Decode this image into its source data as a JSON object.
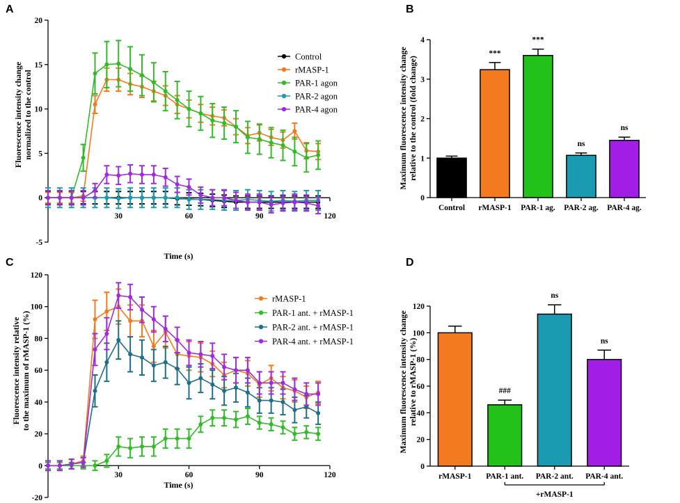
{
  "chart_data": [
    {
      "panel": "A",
      "type": "line",
      "xlabel": "Time (s)",
      "ylabel_lines": [
        "Fluorescence intensity change",
        "normalized to the control"
      ],
      "xlim": [
        0,
        120
      ],
      "ylim": [
        -5,
        20
      ],
      "xticks": [
        30,
        60,
        90,
        120
      ],
      "yticks": [
        -5,
        0,
        5,
        10,
        15,
        20
      ],
      "legend_position": "top-right",
      "x": [
        0,
        5,
        10,
        15,
        20,
        25,
        30,
        35,
        40,
        45,
        50,
        55,
        60,
        65,
        70,
        75,
        80,
        85,
        90,
        95,
        100,
        105,
        110,
        115
      ],
      "series": [
        {
          "name": "Control",
          "color": "#000000",
          "values": [
            0,
            0,
            0,
            0,
            0,
            0,
            0,
            0,
            0,
            0,
            0,
            -0.1,
            -0.15,
            -0.2,
            -0.3,
            -0.4,
            -0.5,
            -0.5,
            -0.5,
            -0.5,
            -0.5,
            -0.5,
            -0.5,
            -0.5
          ],
          "errors": [
            0.7,
            0.7,
            0.7,
            0.7,
            0.7,
            0.7,
            0.7,
            0.7,
            0.7,
            0.7,
            0.7,
            0.7,
            0.7,
            0.7,
            0.7,
            0.7,
            0.7,
            0.7,
            0.7,
            0.7,
            0.7,
            0.7,
            0.7,
            0.7
          ]
        },
        {
          "name": "rMASP-1",
          "color": "#f47a20",
          "values": [
            0,
            0,
            0,
            0.2,
            10.5,
            13.3,
            13.3,
            12.8,
            12.5,
            12.0,
            11.5,
            10.5,
            10.0,
            9.5,
            9.2,
            9.0,
            8.0,
            7.0,
            7.3,
            6.8,
            6.5,
            7.5,
            5.3,
            5.2
          ],
          "errors": [
            0.6,
            0.6,
            0.6,
            0.6,
            1.0,
            1.3,
            1.3,
            1.2,
            1.2,
            1.1,
            1.1,
            1.0,
            1.0,
            1.0,
            1.0,
            0.9,
            0.9,
            0.9,
            0.9,
            0.9,
            0.9,
            0.9,
            0.9,
            0.9
          ]
        },
        {
          "name": "PAR-1 agon",
          "color": "#33b92b",
          "values": [
            0,
            0,
            0,
            4.5,
            14.0,
            15.0,
            15.1,
            14.5,
            13.8,
            13.0,
            12.0,
            11.0,
            10.0,
            9.5,
            8.7,
            8.4,
            8.0,
            6.8,
            6.6,
            6.2,
            5.9,
            5.2,
            4.5,
            4.8
          ],
          "errors": [
            0.8,
            0.8,
            0.8,
            1.5,
            2.3,
            2.6,
            2.6,
            2.5,
            2.3,
            2.2,
            2.2,
            2.1,
            2.0,
            1.9,
            1.9,
            1.8,
            1.8,
            1.8,
            1.7,
            1.7,
            1.7,
            1.6,
            1.6,
            1.6
          ]
        },
        {
          "name": "PAR-2 agon",
          "color": "#1f9aac",
          "values": [
            0,
            0,
            0,
            0,
            0,
            0,
            -0.1,
            0,
            0,
            0,
            0,
            0,
            -0.2,
            -0.2,
            -0.2,
            -0.3,
            -0.3,
            -0.2,
            -0.3,
            -0.4,
            -0.3,
            -0.4,
            -0.3,
            -0.3
          ],
          "errors": [
            1.1,
            1.1,
            1.1,
            1.1,
            1.1,
            1.1,
            1.1,
            1.1,
            1.1,
            1.1,
            1.1,
            1.1,
            1.1,
            1.1,
            1.1,
            1.1,
            1.1,
            1.1,
            1.1,
            1.1,
            1.1,
            1.1,
            1.1,
            1.1
          ]
        },
        {
          "name": "PAR-4 agon",
          "color": "#9b2ddb",
          "values": [
            0,
            0,
            0,
            0,
            0.8,
            2.6,
            2.5,
            2.7,
            2.6,
            2.6,
            2.3,
            1.5,
            1.2,
            0.3,
            0,
            0,
            -0.3,
            -0.5,
            -0.5,
            -0.8,
            -0.6,
            -0.5,
            -0.6,
            -0.9
          ],
          "errors": [
            0.8,
            0.8,
            0.8,
            0.8,
            0.8,
            1.0,
            1.0,
            1.0,
            1.0,
            1.0,
            1.0,
            0.9,
            0.9,
            0.9,
            0.9,
            0.9,
            0.9,
            0.9,
            0.9,
            0.9,
            0.9,
            0.9,
            0.9,
            0.9
          ]
        }
      ]
    },
    {
      "panel": "B",
      "type": "bar",
      "ylabel_lines": [
        "Maximum fluorescence intensity change",
        "relative to the control (fold change)"
      ],
      "ylim": [
        0,
        4
      ],
      "yticks": [
        0,
        1,
        2,
        3,
        4
      ],
      "categories": [
        "Control",
        "rMASP-1",
        "PAR-1 ag.",
        "PAR-2 ag.",
        "PAR-4 ag."
      ],
      "values": [
        1.0,
        3.24,
        3.6,
        1.07,
        1.45
      ],
      "errors": [
        0.05,
        0.18,
        0.16,
        0.06,
        0.08
      ],
      "colors": [
        "#000000",
        "#f47a20",
        "#22c21a",
        "#1a9bb1",
        "#a01ee6"
      ],
      "annotations": [
        "",
        "***",
        "***",
        "ns",
        "ns"
      ]
    },
    {
      "panel": "C",
      "type": "line",
      "xlabel": "Time (s)",
      "ylabel_lines": [
        "Fluorescence intensity relative",
        "to the maximum of rMASP-1 (%)"
      ],
      "xlim": [
        0,
        120
      ],
      "ylim": [
        -20,
        120
      ],
      "xticks": [
        30,
        60,
        90,
        120
      ],
      "yticks": [
        -20,
        0,
        20,
        40,
        60,
        80,
        100,
        120
      ],
      "legend_position": "top-right",
      "x": [
        0,
        5,
        10,
        15,
        20,
        25,
        30,
        35,
        40,
        45,
        50,
        55,
        60,
        65,
        70,
        75,
        80,
        85,
        90,
        95,
        100,
        105,
        110,
        115
      ],
      "series": [
        {
          "name": "rMASP-1",
          "color": "#f47a20",
          "values": [
            0,
            0,
            1,
            3,
            92,
            97,
            100,
            91,
            91,
            75,
            84,
            70,
            69,
            68,
            64,
            57,
            60,
            58,
            51,
            55,
            49,
            47,
            43,
            46
          ],
          "errors": [
            3,
            3,
            3,
            3,
            12,
            12,
            11,
            10,
            10,
            10,
            10,
            9,
            9,
            9,
            8,
            8,
            8,
            8,
            8,
            8,
            7,
            7,
            7,
            7
          ]
        },
        {
          "name": "PAR-1 ant. + rMASP-1",
          "color": "#33b92b",
          "values": [
            0,
            0,
            0,
            0,
            0,
            3,
            12,
            11,
            12,
            12,
            17,
            17,
            17,
            26,
            30,
            30,
            29,
            31,
            27,
            26,
            24,
            20,
            21,
            20
          ],
          "errors": [
            2,
            2,
            2,
            2,
            3,
            4,
            6,
            6,
            6,
            6,
            6,
            6,
            6,
            5,
            5,
            5,
            5,
            5,
            4,
            4,
            4,
            4,
            4,
            4
          ]
        },
        {
          "name": "PAR-2 ant. + rMASP-1",
          "color": "#1f6e85",
          "values": [
            0,
            0,
            1,
            2,
            47,
            65,
            79,
            70,
            68,
            63,
            65,
            61,
            52,
            55,
            51,
            47,
            49,
            46,
            41,
            41,
            40,
            35,
            37,
            33
          ],
          "errors": [
            3,
            3,
            3,
            3,
            10,
            12,
            12,
            11,
            11,
            10,
            10,
            10,
            10,
            9,
            9,
            9,
            9,
            9,
            8,
            8,
            8,
            8,
            7,
            7
          ]
        },
        {
          "name": "PAR-4 ant. + rMASP-1",
          "color": "#9b2ddb",
          "values": [
            0,
            0,
            1,
            2,
            73,
            83,
            107,
            106,
            98,
            92,
            86,
            79,
            71,
            70,
            69,
            62,
            60,
            60,
            52,
            52,
            52,
            48,
            45,
            45
          ],
          "errors": [
            3,
            3,
            3,
            3,
            10,
            10,
            8,
            8,
            8,
            8,
            8,
            8,
            8,
            8,
            8,
            8,
            8,
            8,
            7,
            7,
            7,
            7,
            7,
            7
          ]
        }
      ]
    },
    {
      "panel": "D",
      "type": "bar",
      "ylabel_lines": [
        "Maximum fluorescence intensity change",
        "relative to rMASP-1 (%)"
      ],
      "ylim": [
        0,
        120
      ],
      "yticks": [
        0,
        20,
        40,
        60,
        80,
        100,
        120
      ],
      "categories": [
        "rMASP-1",
        "PAR-1 ant.",
        "PAR-2 ant.",
        "PAR-4 ant."
      ],
      "values": [
        100,
        46,
        114,
        80
      ],
      "errors": [
        5,
        3.5,
        7,
        7
      ],
      "colors": [
        "#f47a20",
        "#22c21a",
        "#1a9bb1",
        "#a01ee6"
      ],
      "annotations": [
        "",
        "###",
        "ns",
        "ns"
      ],
      "bracket_label": "+rMASP-1"
    }
  ],
  "panel_labels": [
    "A",
    "B",
    "C",
    "D"
  ]
}
